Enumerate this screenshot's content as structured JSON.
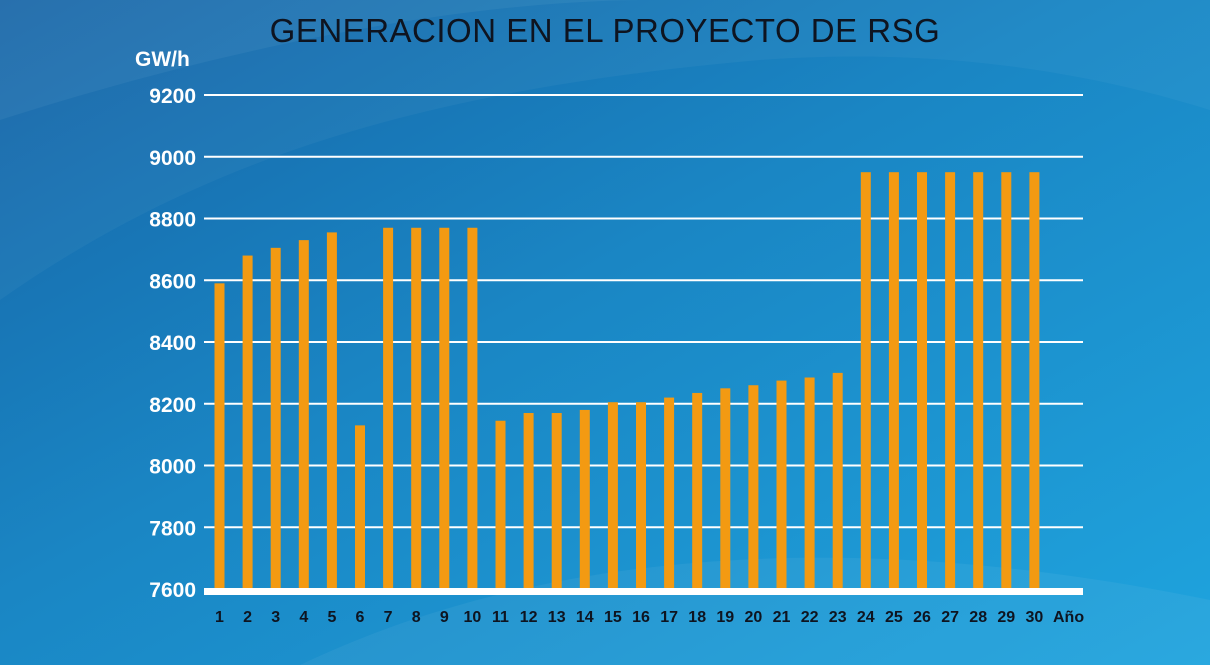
{
  "colors": {
    "background_light": "#1fa0dc",
    "background_dark": "#1467a8",
    "bar": "#f39a12",
    "grid": "#ffffff",
    "title": "#0e1420"
  },
  "chart_data": {
    "type": "bar",
    "title": "GENERACION EN EL PROYECTO DE RSG",
    "ylabel": "GW/h",
    "xlabel": "Año",
    "ylim": [
      7600,
      9200
    ],
    "yticks": [
      7600,
      7800,
      8000,
      8200,
      8400,
      8600,
      8800,
      9000,
      9200
    ],
    "grid": true,
    "categories": [
      "1",
      "2",
      "3",
      "4",
      "5",
      "6",
      "7",
      "8",
      "9",
      "10",
      "11",
      "12",
      "13",
      "14",
      "15",
      "16",
      "17",
      "18",
      "19",
      "20",
      "21",
      "22",
      "23",
      "24",
      "25",
      "26",
      "27",
      "28",
      "29",
      "30"
    ],
    "values": [
      8590,
      8680,
      8705,
      8730,
      8755,
      8130,
      8770,
      8770,
      8770,
      8770,
      8145,
      8170,
      8170,
      8180,
      8205,
      8205,
      8220,
      8235,
      8250,
      8260,
      8275,
      8285,
      8300,
      8950,
      8950,
      8950,
      8950,
      8950,
      8950,
      8950
    ]
  }
}
